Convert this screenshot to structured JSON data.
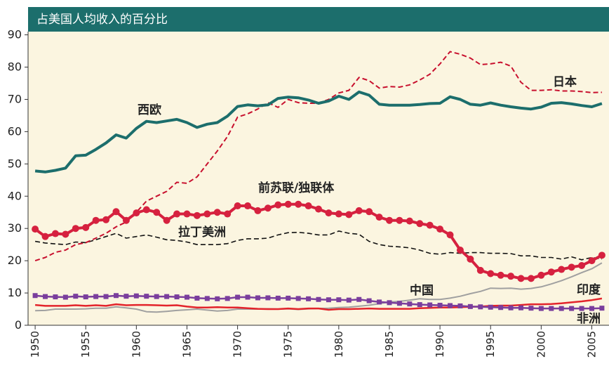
{
  "chart_data": {
    "type": "line",
    "title": "占美国人均收入的百分比",
    "x": [
      1950,
      1951,
      1952,
      1953,
      1954,
      1955,
      1956,
      1957,
      1958,
      1959,
      1960,
      1961,
      1962,
      1963,
      1964,
      1965,
      1966,
      1967,
      1968,
      1969,
      1970,
      1971,
      1972,
      1973,
      1974,
      1975,
      1976,
      1977,
      1978,
      1979,
      1980,
      1981,
      1982,
      1983,
      1984,
      1985,
      1986,
      1987,
      1988,
      1989,
      1990,
      1991,
      1992,
      1993,
      1994,
      1995,
      1996,
      1997,
      1998,
      1999,
      2000,
      2001,
      2002,
      2003,
      2004,
      2005,
      2006
    ],
    "xlim": [
      1949.3,
      2006.7
    ],
    "xticks": [
      1950,
      1955,
      1960,
      1965,
      1970,
      1975,
      1980,
      1985,
      1990,
      1995,
      2000,
      2005
    ],
    "ylim": [
      0,
      91
    ],
    "yticks": [
      0,
      10,
      20,
      30,
      40,
      50,
      60,
      70,
      80,
      90
    ],
    "series": [
      {
        "name": "西欧",
        "color": "#1c6e6c",
        "width": 4,
        "dash": false,
        "marker": "none",
        "values": [
          47.8,
          47.5,
          48,
          48.7,
          52.5,
          52.7,
          54.5,
          56.5,
          59,
          58,
          61,
          63.2,
          62.8,
          63.3,
          63.8,
          62.8,
          61.3,
          62.3,
          62.8,
          64.8,
          67.8,
          68.3,
          68,
          68.3,
          70.3,
          70.7,
          70.5,
          69.8,
          68.8,
          69.5,
          71,
          70,
          72.3,
          71.3,
          68.5,
          68.2,
          68.2,
          68.2,
          68.4,
          68.7,
          68.8,
          70.8,
          70,
          68.5,
          68.2,
          68.9,
          68.2,
          67.7,
          67.3,
          67,
          67.6,
          68.8,
          69,
          68.6,
          68.1,
          67.7,
          68.7
        ]
      },
      {
        "name": "日本",
        "color": "#c8102e",
        "width": 2,
        "dash": true,
        "marker": "none",
        "values": [
          20,
          21,
          22.6,
          23.3,
          25,
          25.6,
          27,
          28.5,
          30.5,
          32,
          35,
          38.5,
          40,
          41.5,
          44.3,
          44,
          46,
          50,
          54,
          58.5,
          64.5,
          65.5,
          67,
          69,
          67.5,
          70,
          69,
          68.8,
          68.8,
          70,
          72,
          72.8,
          76.8,
          75.8,
          73.5,
          74,
          73.8,
          74.5,
          76,
          77.8,
          81,
          84.8,
          84,
          82.8,
          80.8,
          81,
          81.5,
          80.3,
          75.3,
          72.8,
          72.8,
          73,
          72.6,
          72.6,
          72.4,
          72.1,
          72.2
        ]
      },
      {
        "name": "前苏联/独联体",
        "color": "#d6213f",
        "width": 4,
        "dash": false,
        "marker": "circle",
        "values": [
          29.8,
          27.5,
          28.4,
          28.2,
          30,
          30.3,
          32.5,
          32.7,
          35.2,
          32.5,
          34.8,
          35.8,
          35,
          32.5,
          34.5,
          34.5,
          34,
          34.5,
          35,
          34.5,
          37,
          37,
          35.5,
          36.3,
          37.3,
          37.5,
          37.5,
          37,
          36,
          34.8,
          34.5,
          34.3,
          35.5,
          35.2,
          33.5,
          32.5,
          32.5,
          32.3,
          31.5,
          31,
          29.8,
          28,
          23.3,
          20.5,
          17,
          16,
          15.5,
          15.2,
          14.5,
          14.5,
          15.5,
          16.5,
          17.3,
          18,
          18.5,
          20,
          21.7
        ]
      },
      {
        "name": "拉丁美洲",
        "color": "#111111",
        "width": 1.6,
        "dash": true,
        "marker": "none",
        "values": [
          26,
          25.5,
          25.2,
          25,
          25.8,
          25.6,
          26.5,
          27.5,
          28.5,
          27,
          27.5,
          28,
          27.3,
          26.5,
          26.3,
          25.8,
          25,
          25,
          25,
          25.3,
          26.3,
          26.8,
          26.8,
          27,
          28,
          28.7,
          28.8,
          28.5,
          28,
          28,
          29.2,
          28.5,
          28.2,
          26,
          25,
          24.5,
          24.3,
          24,
          23.3,
          22.3,
          22,
          22.5,
          22.3,
          22.5,
          22.5,
          22.3,
          22.3,
          22.2,
          21.5,
          21.5,
          21,
          21,
          20.5,
          21.2,
          20.3,
          21,
          20.5
        ]
      },
      {
        "name": "中国",
        "color": "#a0a0a0",
        "width": 2,
        "dash": false,
        "marker": "none",
        "values": [
          4.5,
          4.6,
          5,
          5,
          5,
          5.1,
          5.3,
          5.3,
          5.7,
          5.4,
          5,
          4.2,
          4.1,
          4.3,
          4.6,
          4.8,
          5,
          4.7,
          4.4,
          4.6,
          5,
          5,
          5,
          5.1,
          5,
          5.1,
          4.9,
          5.1,
          5.2,
          5.3,
          5.5,
          5.6,
          5.9,
          6.2,
          6.7,
          7.2,
          7.4,
          7.8,
          8.2,
          8,
          8,
          8.4,
          9,
          9.8,
          10.5,
          11.5,
          11.4,
          11.5,
          11.2,
          11.4,
          11.9,
          12.8,
          13.8,
          15,
          16.3,
          17.5,
          19.3
        ]
      },
      {
        "name": "印度",
        "color": "#e3242b",
        "width": 2.5,
        "dash": false,
        "marker": "none",
        "values": [
          6.3,
          6,
          6,
          6,
          6.2,
          6,
          6.2,
          6,
          6.5,
          6.2,
          6.3,
          6.3,
          6.2,
          6.1,
          6.2,
          5.8,
          5.5,
          5.5,
          5.6,
          5.5,
          5.5,
          5.3,
          5.1,
          5,
          5,
          5.2,
          5,
          5.2,
          5.2,
          4.8,
          5,
          5,
          5.1,
          5.2,
          5.1,
          5.1,
          5.1,
          5.1,
          5.3,
          5.4,
          5.5,
          5.5,
          5.6,
          5.7,
          5.8,
          6,
          6.1,
          6.1,
          6.3,
          6.5,
          6.5,
          6.6,
          6.8,
          7.1,
          7.4,
          7.8,
          8.3
        ]
      },
      {
        "name": "非洲",
        "color": "#7a3e9d",
        "width": 2.5,
        "dash": false,
        "marker": "square",
        "values": [
          9.2,
          8.9,
          8.8,
          8.7,
          9,
          8.8,
          8.9,
          8.9,
          9.2,
          9,
          9.1,
          9,
          8.9,
          8.9,
          8.8,
          8.7,
          8.4,
          8.3,
          8.2,
          8.3,
          8.7,
          8.7,
          8.5,
          8.5,
          8.4,
          8.4,
          8.3,
          8.2,
          8,
          7.9,
          7.9,
          7.8,
          8,
          7.6,
          7.2,
          7,
          6.8,
          6.6,
          6.4,
          6.3,
          6.2,
          6.1,
          6,
          5.8,
          5.7,
          5.6,
          5.5,
          5.4,
          5.4,
          5.3,
          5.2,
          5.2,
          5.2,
          5.2,
          5.2,
          5.2,
          5.3
        ]
      }
    ]
  }
}
